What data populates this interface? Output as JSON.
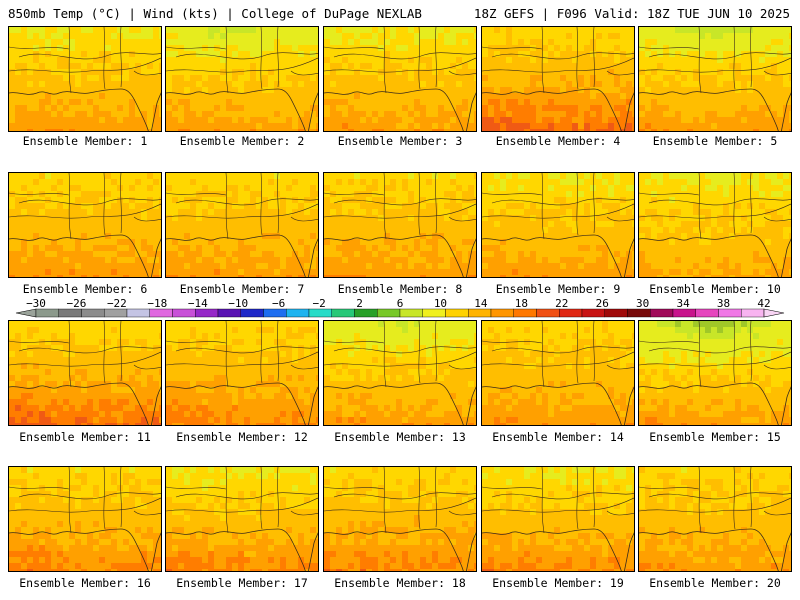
{
  "header": {
    "left_title": "850mb Temp (°C) | Wind (kts) | College of DuPage NEXLAB",
    "right_title": "18Z GEFS | F096 Valid: 18Z TUE JUN 10 2025"
  },
  "map_data": {
    "field": "850mb Temp (°C)",
    "members": [
      {
        "label": "Ensemble Member: 1",
        "north": 13,
        "south": 19,
        "hot": 0.4,
        "cool": 0.0
      },
      {
        "label": "Ensemble Member: 2",
        "north": 12,
        "south": 19,
        "hot": 0.3,
        "cool": 0.6
      },
      {
        "label": "Ensemble Member: 3",
        "north": 13,
        "south": 19,
        "hot": 0.3,
        "cool": 0.1
      },
      {
        "label": "Ensemble Member: 4",
        "north": 14,
        "south": 21,
        "hot": 0.8,
        "cool": 0.0
      },
      {
        "label": "Ensemble Member: 5",
        "north": 12,
        "south": 19,
        "hot": 0.4,
        "cool": 0.7
      },
      {
        "label": "Ensemble Member: 6",
        "north": 14,
        "south": 19,
        "hot": 0.3,
        "cool": 0.0
      },
      {
        "label": "Ensemble Member: 7",
        "north": 14,
        "south": 19,
        "hot": 0.3,
        "cool": 0.0
      },
      {
        "label": "Ensemble Member: 8",
        "north": 14,
        "south": 19,
        "hot": 0.4,
        "cool": 0.0
      },
      {
        "label": "Ensemble Member: 9",
        "north": 13,
        "south": 19,
        "hot": 0.4,
        "cool": 0.0
      },
      {
        "label": "Ensemble Member: 10",
        "north": 13,
        "south": 18,
        "hot": 0.2,
        "cool": 0.0
      },
      {
        "label": "Ensemble Member: 11",
        "north": 14,
        "south": 21,
        "hot": 0.9,
        "cool": 0.0
      },
      {
        "label": "Ensemble Member: 12",
        "north": 14,
        "south": 20,
        "hot": 0.6,
        "cool": 0.0
      },
      {
        "label": "Ensemble Member: 13",
        "north": 12,
        "south": 19,
        "hot": 0.4,
        "cool": 0.4
      },
      {
        "label": "Ensemble Member: 14",
        "north": 14,
        "south": 19,
        "hot": 0.4,
        "cool": 0.0
      },
      {
        "label": "Ensemble Member: 15",
        "north": 11,
        "south": 19,
        "hot": 0.4,
        "cool": 1.0
      },
      {
        "label": "Ensemble Member: 16",
        "north": 14,
        "south": 20,
        "hot": 0.7,
        "cool": 0.0
      },
      {
        "label": "Ensemble Member: 17",
        "north": 13,
        "south": 20,
        "hot": 0.7,
        "cool": 0.0
      },
      {
        "label": "Ensemble Member: 18",
        "north": 14,
        "south": 20,
        "hot": 0.6,
        "cool": 0.0
      },
      {
        "label": "Ensemble Member: 19",
        "north": 13,
        "south": 20,
        "hot": 0.6,
        "cool": 0.0
      },
      {
        "label": "Ensemble Member: 20",
        "north": 14,
        "south": 19,
        "hot": 0.4,
        "cool": 0.0
      }
    ]
  },
  "colorbar": {
    "labels": [
      "−30",
      "−26",
      "−22",
      "−18",
      "−14",
      "−10",
      "−6",
      "−2",
      "2",
      "6",
      "10",
      "14",
      "18",
      "22",
      "26",
      "30",
      "34",
      "38",
      "42"
    ],
    "colors": [
      "#8c9a8c",
      "#7a7a7a",
      "#8c8c8c",
      "#a0a0a0",
      "#c4c4e4",
      "#e068e0",
      "#c850d8",
      "#9628c8",
      "#5a14b4",
      "#1e28c8",
      "#1e6ef0",
      "#1eb4f0",
      "#28dcc8",
      "#28c878",
      "#28a028",
      "#78c828",
      "#c8e628",
      "#f0f01e",
      "#ffd200",
      "#ffb400",
      "#ff9600",
      "#ff7800",
      "#f05014",
      "#e02814",
      "#c81414",
      "#a00a0a",
      "#780a0a",
      "#a00a5a",
      "#c8148c",
      "#e646be",
      "#f078e6",
      "#f8b4f0"
    ]
  }
}
